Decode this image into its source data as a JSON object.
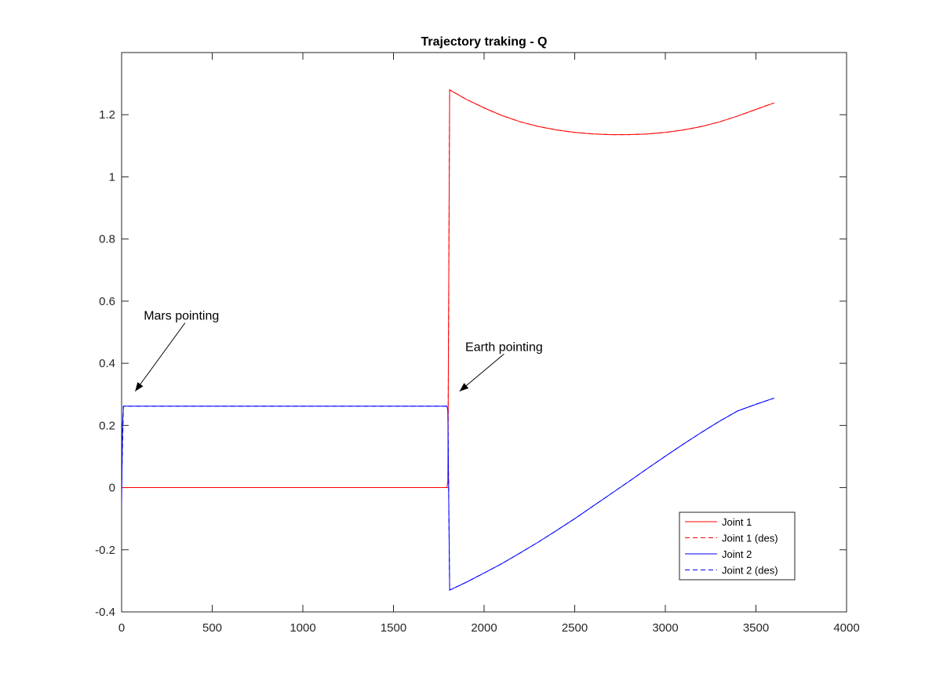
{
  "chart_data": {
    "type": "line",
    "title": "Trajectory traking - Q",
    "xlabel": "",
    "ylabel": "",
    "xlim": [
      0,
      4000
    ],
    "ylim": [
      -0.4,
      1.4
    ],
    "xticks": [
      0,
      500,
      1000,
      1500,
      2000,
      2500,
      3000,
      3500,
      4000
    ],
    "xtick_labels": [
      "0",
      "500",
      "1000",
      "1500",
      "2000",
      "2500",
      "3000",
      "3500",
      "4000"
    ],
    "yticks": [
      -0.4,
      -0.2,
      0,
      0.2,
      0.4,
      0.6,
      0.8,
      1,
      1.2
    ],
    "ytick_labels": [
      "-0.4",
      "-0.2",
      "0",
      "0.2",
      "0.4",
      "0.6",
      "0.8",
      "1",
      "1.2"
    ],
    "grid": false,
    "legend_position": "bottom-right",
    "series": [
      {
        "name": "Joint 1",
        "color": "#ff0000",
        "style": "solid",
        "x": [
          0,
          1795,
          1800,
          1810,
          1900,
          2000,
          2100,
          2200,
          2300,
          2400,
          2500,
          2600,
          2700,
          2800,
          2900,
          3000,
          3100,
          3200,
          3300,
          3400,
          3500,
          3600
        ],
        "y": [
          0,
          0,
          0.02,
          1.28,
          1.25,
          1.222,
          1.197,
          1.177,
          1.162,
          1.151,
          1.143,
          1.138,
          1.136,
          1.136,
          1.138,
          1.143,
          1.151,
          1.162,
          1.177,
          1.196,
          1.217,
          1.238
        ]
      },
      {
        "name": "Joint 1 (des)",
        "color": "#ff0000",
        "style": "dashed",
        "x": [
          0,
          1800,
          1810,
          1900,
          2000,
          2100,
          2200,
          2300,
          2400,
          2500,
          2600,
          2700,
          2800,
          2900,
          3000,
          3100,
          3200,
          3300,
          3400,
          3500,
          3600
        ],
        "y": [
          0,
          0,
          1.28,
          1.25,
          1.222,
          1.197,
          1.177,
          1.162,
          1.151,
          1.143,
          1.138,
          1.136,
          1.136,
          1.138,
          1.143,
          1.151,
          1.162,
          1.177,
          1.196,
          1.217,
          1.238
        ]
      },
      {
        "name": "Joint 2",
        "color": "#0000ff",
        "style": "solid",
        "x": [
          0,
          5,
          10,
          1795,
          1800,
          1810,
          1900,
          2000,
          2100,
          2200,
          2300,
          2400,
          2500,
          2600,
          2700,
          2800,
          2900,
          3000,
          3100,
          3200,
          3300,
          3400,
          3500,
          3600
        ],
        "y": [
          -0.05,
          0.2,
          0.262,
          0.262,
          0.25,
          -0.33,
          -0.305,
          -0.275,
          -0.244,
          -0.21,
          -0.175,
          -0.138,
          -0.1,
          -0.06,
          -0.02,
          0.02,
          0.061,
          0.101,
          0.14,
          0.178,
          0.214,
          0.247,
          0.268,
          0.288
        ]
      },
      {
        "name": "Joint 2 (des)",
        "color": "#0000ff",
        "style": "dashed",
        "x": [
          0,
          10,
          1800,
          1810,
          1900,
          2000,
          2100,
          2200,
          2300,
          2400,
          2500,
          2600,
          2700,
          2800,
          2900,
          3000,
          3100,
          3200,
          3300,
          3400,
          3500,
          3600
        ],
        "y": [
          0,
          0.262,
          0.262,
          -0.33,
          -0.305,
          -0.275,
          -0.244,
          -0.21,
          -0.175,
          -0.138,
          -0.1,
          -0.06,
          -0.02,
          0.02,
          0.061,
          0.101,
          0.14,
          0.178,
          0.214,
          0.247,
          0.268,
          0.288
        ]
      }
    ],
    "annotations": [
      {
        "text": "Mars pointing",
        "text_x": 330,
        "text_y": 0.54,
        "arrow_from_x": 350,
        "arrow_from_y": 0.53,
        "arrow_to_x": 75,
        "arrow_to_y": 0.31
      },
      {
        "text": "Earth pointing",
        "text_x": 2110,
        "text_y": 0.44,
        "arrow_from_x": 2110,
        "arrow_from_y": 0.43,
        "arrow_to_x": 1865,
        "arrow_to_y": 0.31
      }
    ]
  }
}
